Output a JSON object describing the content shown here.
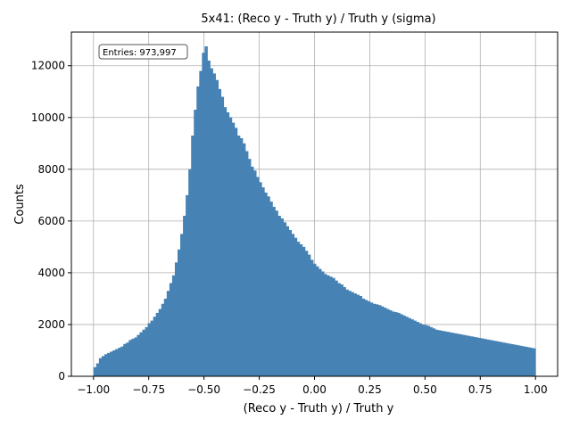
{
  "chart_data": {
    "type": "bar",
    "title": "5x41: (Reco y - Truth y) / Truth y (sigma)",
    "xlabel": "(Reco y - Truth y) / Truth y",
    "ylabel": "Counts",
    "xlim": [
      -1.1,
      1.1
    ],
    "ylim": [
      0,
      13300
    ],
    "grid": true,
    "annotation": "Entries: 973,997",
    "annotation_position": "top-left",
    "bar_color": "#4682b4",
    "x_ticks": [
      -1.0,
      -0.75,
      -0.5,
      -0.25,
      0.0,
      0.25,
      0.5,
      0.75,
      1.0
    ],
    "x_tick_labels": [
      "−1.00",
      "−0.75",
      "−0.50",
      "−0.25",
      "0.00",
      "0.25",
      "0.50",
      "0.75",
      "1.00"
    ],
    "y_ticks": [
      0,
      2000,
      4000,
      6000,
      8000,
      10000,
      12000
    ],
    "y_tick_labels": [
      "0",
      "2000",
      "4000",
      "6000",
      "8000",
      "10000",
      "12000"
    ],
    "bin_start": -1.0,
    "bin_end": 1.0,
    "values": [
      350,
      500,
      700,
      780,
      850,
      900,
      950,
      1000,
      1050,
      1100,
      1150,
      1250,
      1300,
      1400,
      1450,
      1500,
      1600,
      1700,
      1800,
      1900,
      2050,
      2150,
      2300,
      2450,
      2600,
      2800,
      3000,
      3300,
      3600,
      3900,
      4400,
      4900,
      5500,
      6200,
      7000,
      8000,
      9300,
      10300,
      11200,
      11800,
      12500,
      12750,
      12200,
      11900,
      11700,
      11450,
      11100,
      10800,
      10400,
      10200,
      10000,
      9800,
      9600,
      9300,
      9200,
      9000,
      8700,
      8400,
      8100,
      7950,
      7700,
      7500,
      7300,
      7100,
      6950,
      6750,
      6550,
      6400,
      6200,
      6100,
      5950,
      5800,
      5650,
      5500,
      5350,
      5200,
      5100,
      5000,
      4850,
      4700,
      4500,
      4350,
      4250,
      4150,
      4050,
      3950,
      3900,
      3850,
      3800,
      3700,
      3600,
      3550,
      3450,
      3350,
      3300,
      3250,
      3200,
      3150,
      3100,
      3000,
      2950,
      2900,
      2850,
      2800,
      2780,
      2750,
      2700,
      2650,
      2600,
      2550,
      2500,
      2480,
      2450,
      2400,
      2350,
      2300,
      2250,
      2200,
      2150,
      2100,
      2050,
      2000,
      1980,
      1950,
      1900,
      1850,
      1800,
      1780,
      1760,
      1740,
      1720,
      1700,
      1680,
      1660,
      1640,
      1620,
      1600,
      1580,
      1560,
      1540,
      1520,
      1500,
      1480,
      1460,
      1440,
      1420,
      1400,
      1380,
      1360,
      1340,
      1320,
      1300,
      1280,
      1260,
      1240,
      1220,
      1200,
      1180,
      1160,
      1140,
      1120,
      1100,
      1080
    ]
  }
}
